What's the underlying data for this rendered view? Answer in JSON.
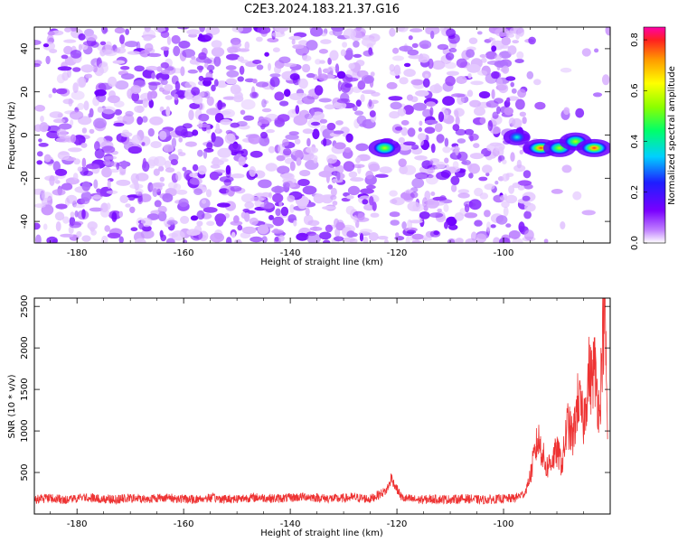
{
  "title": "C2E3.2024.183.21.37.G16",
  "chart_data": [
    {
      "type": "heatmap",
      "xlabel": "Height of straight line (km)",
      "ylabel": "Frequency (Hz)",
      "xlim": [
        -188,
        -80
      ],
      "ylim": [
        -50,
        50
      ],
      "x_ticks": [
        -180,
        -160,
        -140,
        -120,
        -100
      ],
      "y_ticks": [
        -40,
        -20,
        0,
        20,
        40
      ],
      "colorbar": {
        "label": "Normalized spectral amplitude",
        "range": [
          0,
          0.85
        ],
        "ticks": [
          0.0,
          0.2,
          0.4,
          0.6,
          0.8
        ]
      },
      "features": [
        {
          "x": -122.3,
          "y": -6,
          "amp": 0.45
        },
        {
          "x": -97.5,
          "y": -1,
          "amp": 0.3
        },
        {
          "x": -93,
          "y": -6,
          "amp": 0.8
        },
        {
          "x": -89.5,
          "y": -6,
          "amp": 0.6
        },
        {
          "x": -86.5,
          "y": -3,
          "amp": 0.55
        },
        {
          "x": -83,
          "y": -6,
          "amp": 0.85
        }
      ],
      "gap_bands": [
        [
          -124,
          -121
        ],
        [
          -95,
          -80
        ]
      ],
      "grid": false
    },
    {
      "type": "line",
      "xlabel": "Height of straight line (km)",
      "ylabel": "SNR (10 * v/v)",
      "xlim": [
        -188,
        -80
      ],
      "ylim": [
        0,
        2600
      ],
      "x_ticks": [
        -180,
        -160,
        -140,
        -120,
        -100
      ],
      "y_ticks": [
        500,
        1000,
        1500,
        2000,
        2500
      ],
      "color": "#ee3333",
      "series": [
        {
          "x": [
            -188,
            -185,
            -182,
            -179,
            -176,
            -173,
            -170,
            -167,
            -164,
            -161,
            -158,
            -155,
            -152,
            -149,
            -146,
            -143,
            -140,
            -137,
            -134,
            -131,
            -128,
            -125,
            -122,
            -121,
            -120,
            -119,
            -116,
            -113,
            -110,
            -107,
            -104,
            -101,
            -98,
            -96,
            -95,
            -94,
            -93.5,
            -93,
            -92,
            -91,
            -90,
            -89,
            -88,
            -87,
            -86,
            -85,
            -84,
            -83.5,
            -83,
            -82.5,
            -82,
            -81.5,
            -81,
            -80.5
          ],
          "y": [
            180,
            190,
            170,
            200,
            185,
            175,
            190,
            180,
            200,
            185,
            175,
            195,
            180,
            190,
            200,
            185,
            195,
            210,
            190,
            185,
            200,
            180,
            280,
            420,
            300,
            190,
            170,
            180,
            175,
            185,
            170,
            180,
            190,
            250,
            450,
            780,
            900,
            800,
            550,
            650,
            750,
            600,
            1100,
            900,
            1400,
            1100,
            1700,
            1600,
            1800,
            1500,
            1200,
            2000,
            2600,
            900
          ]
        }
      ],
      "grid": false
    }
  ]
}
